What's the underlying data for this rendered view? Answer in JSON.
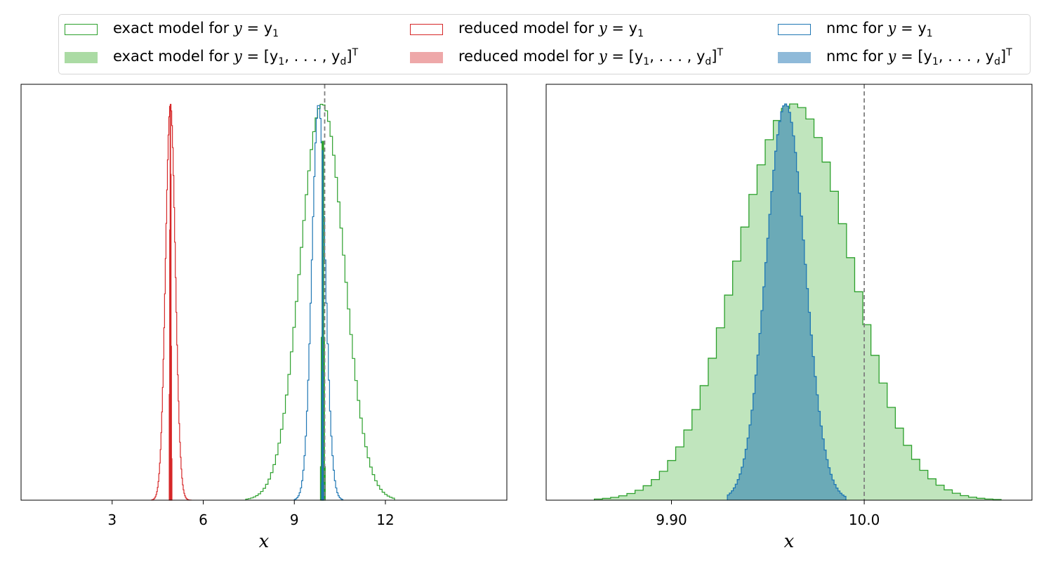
{
  "legend": {
    "items": [
      {
        "text": "exact model for ",
        "math_sym": "y",
        "math_rest": " = y",
        "math_sub": "1",
        "math_tail": "",
        "math_sup": "",
        "color": "#2ca02c",
        "style": "outline"
      },
      {
        "text": "reduced model for ",
        "math_sym": "y",
        "math_rest": " = y",
        "math_sub": "1",
        "math_tail": "",
        "math_sup": "",
        "color": "#d62728",
        "style": "outline"
      },
      {
        "text": "nmc for ",
        "math_sym": "y",
        "math_rest": " = y",
        "math_sub": "1",
        "math_tail": "",
        "math_sup": "",
        "color": "#1f77b4",
        "style": "outline"
      },
      {
        "text": "exact model for ",
        "math_sym": "y",
        "math_rest": " = [y",
        "math_sub": "1",
        "math_tail": ", . . . , y",
        "math_sub2": "d",
        "math_end": "]",
        "math_sup": "T",
        "color": "#abdba4",
        "style": "filled"
      },
      {
        "text": "reduced model for ",
        "math_sym": "y",
        "math_rest": " = [y",
        "math_sub": "1",
        "math_tail": ", . . . , y",
        "math_sub2": "d",
        "math_end": "]",
        "math_sup": "T",
        "color": "#eea8a9",
        "style": "filled"
      },
      {
        "text": "nmc for ",
        "math_sym": "y",
        "math_rest": " = [y",
        "math_sub": "1",
        "math_tail": ", . . . , y",
        "math_sub2": "d",
        "math_end": "]",
        "math_sup": "T",
        "color": "#8fbad9",
        "style": "filled"
      }
    ]
  },
  "colors": {
    "exact": "#2ca02c",
    "reduced": "#d62728",
    "nmc": "#1f77b4",
    "exact_fill": "#c0e5bd",
    "nmc_fill": "#6baab7",
    "reference_line": "#808080"
  },
  "chart_data": [
    {
      "type": "histogram",
      "xlabel": "x",
      "ylabel": "",
      "xlim": [
        0,
        16
      ],
      "xticks": [
        3,
        6,
        9,
        12
      ],
      "xtick_labels": [
        "3",
        "6",
        "9",
        "12"
      ],
      "y_ticks_shown": false,
      "reference_line_x": 10.0,
      "series": [
        {
          "name": "reduced model for y = y1",
          "style": "step-outline",
          "center": 4.92,
          "std": 0.16,
          "range": [
            4.3,
            5.6
          ]
        },
        {
          "name": "reduced model for y = [y1, ..., yd]^T",
          "style": "filled",
          "center": 4.92,
          "std": 0.02,
          "range": [
            4.88,
            4.97
          ]
        },
        {
          "name": "exact model for y = y1",
          "style": "step-outline",
          "center": 9.92,
          "std": 0.72,
          "range": [
            7.4,
            12.3
          ]
        },
        {
          "name": "nmc for y = y1",
          "style": "step-outline",
          "center": 9.8,
          "std": 0.22,
          "range": [
            9.0,
            10.6
          ]
        },
        {
          "name": "exact model for y = [y1, ..., yd]^T",
          "style": "filled",
          "center": 9.94,
          "std": 0.03,
          "range": [
            9.86,
            10.02
          ]
        },
        {
          "name": "nmc for y = [y1, ..., yd]^T",
          "style": "filled",
          "center": 9.93,
          "std": 0.01,
          "range": [
            9.9,
            9.96
          ]
        }
      ]
    },
    {
      "type": "histogram",
      "xlabel": "x",
      "ylabel": "",
      "xlim": [
        9.835,
        10.087
      ],
      "xticks": [
        9.9,
        10.0
      ],
      "xtick_labels": [
        "9.90",
        "10.0"
      ],
      "y_ticks_shown": false,
      "reference_line_x": 10.0,
      "series": [
        {
          "name": "exact model for y = [y1, ..., yd]^T",
          "style": "filled-step",
          "center": 9.9636,
          "std": 0.0296,
          "range": [
            9.86,
            10.071
          ]
        },
        {
          "name": "nmc for y = [y1, ..., yd]^T",
          "style": "filled-step",
          "center": 9.9592,
          "std": 0.0101,
          "range": [
            9.929,
            9.9905
          ]
        }
      ]
    }
  ]
}
